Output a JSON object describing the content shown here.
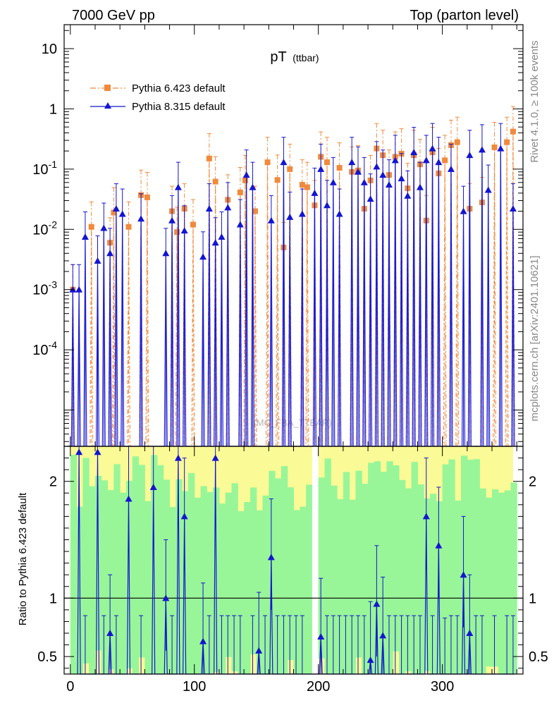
{
  "header": {
    "left_title": "7000 GeV pp",
    "right_title": "Top (parton level)"
  },
  "side_labels": {
    "rivet": "Rivet 4.1.0, ≥ 100k events",
    "mcplots": "mcplots.cern.ch [arXiv:2401.10621]"
  },
  "watermark": "(MC_FBA_TTBAR)",
  "colors": {
    "pythia6": "#f08a3c",
    "pythia8": "#1414d2",
    "band_inner": "#98f698",
    "band_outer": "#fafa96"
  },
  "chart_data": [
    {
      "type": "line",
      "title": "pT",
      "title_suffix": "(ttbar)",
      "yscale": "log",
      "ylim": [
        2.5e-06,
        25
      ],
      "xlim": [
        -5,
        365
      ],
      "ytick_labels": [
        "10^{-4}",
        "10^{-3}",
        "10^{-2}",
        "10^{-1}",
        "1",
        "10"
      ],
      "ytick_values": [
        0.0001,
        0.001,
        0.01,
        0.1,
        1,
        10
      ],
      "legend": [
        "Pythia 6.423 default",
        "Pythia 8.315 default"
      ],
      "legend_position": "top-left",
      "series": [
        {
          "name": "Pythia 6.423 default",
          "marker": "square",
          "line": "dash-dot",
          "x": [
            2,
            17,
            32,
            35,
            47,
            57,
            62,
            82,
            86,
            92,
            99,
            112,
            117,
            127,
            137,
            141,
            149,
            159,
            167,
            172,
            177,
            187,
            191,
            197,
            202,
            207,
            217,
            227,
            232,
            237,
            242,
            247,
            252,
            257,
            262,
            267,
            272,
            277,
            282,
            287,
            292,
            297,
            302,
            307,
            312,
            322,
            332,
            342,
            352,
            357
          ],
          "y": [
            0.001,
            0.011,
            0.006,
            0.019,
            0.011,
            0.037,
            0.034,
            0.02,
            0.009,
            0.022,
            0.012,
            0.15,
            0.062,
            0.031,
            0.041,
            0.065,
            0.02,
            0.13,
            0.066,
            0.005,
            0.1,
            0.055,
            0.05,
            0.025,
            0.16,
            0.13,
            0.105,
            0.09,
            0.095,
            0.022,
            0.065,
            0.22,
            0.17,
            0.08,
            0.16,
            0.18,
            0.048,
            0.17,
            0.12,
            0.014,
            0.19,
            0.085,
            0.14,
            0.25,
            0.28,
            0.022,
            0.028,
            0.23,
            0.28,
            0.42
          ]
        },
        {
          "name": "Pythia 8.315 default",
          "marker": "triangle",
          "line": "solid",
          "x": [
            2,
            7,
            12,
            22,
            27,
            32,
            37,
            42,
            57,
            77,
            82,
            87,
            92,
            107,
            112,
            117,
            122,
            127,
            137,
            142,
            147,
            162,
            172,
            177,
            187,
            197,
            202,
            207,
            212,
            217,
            227,
            232,
            237,
            242,
            247,
            252,
            257,
            262,
            267,
            272,
            277,
            282,
            287,
            292,
            297,
            307,
            317,
            322,
            332,
            337,
            347,
            357
          ],
          "y": [
            0.001,
            0.001,
            0.0075,
            0.003,
            0.0105,
            0.004,
            0.022,
            0.018,
            0.015,
            0.004,
            0.014,
            0.05,
            0.0095,
            0.0035,
            0.022,
            0.006,
            0.0075,
            0.023,
            0.012,
            0.08,
            0.05,
            0.014,
            0.13,
            0.016,
            0.018,
            0.04,
            0.1,
            0.025,
            0.06,
            0.018,
            0.13,
            0.09,
            0.06,
            0.032,
            0.11,
            0.08,
            0.055,
            0.14,
            0.07,
            0.036,
            0.19,
            0.05,
            0.14,
            0.22,
            0.13,
            0.1,
            0.02,
            0.17,
            0.21,
            0.045,
            0.22,
            0.022
          ]
        }
      ]
    },
    {
      "type": "line",
      "ylabel": "Ratio to Pythia 6.423 default",
      "ylim": [
        0.35,
        2.3
      ],
      "yticks": [
        0.5,
        1,
        2
      ],
      "ytick_labels": [
        "0.5",
        "1",
        "2"
      ],
      "xlim": [
        -5,
        365
      ],
      "xticks": [
        0,
        100,
        200,
        300
      ],
      "xtick_labels": [
        "0",
        "100",
        "200",
        "300"
      ],
      "reference_line": 1,
      "series": [
        {
          "name": "Pythia 8.315 default / Pythia 6.423 default",
          "x": [
            7,
            12,
            22,
            27,
            32,
            37,
            47,
            57,
            67,
            77,
            82,
            87,
            92,
            107,
            112,
            117,
            122,
            127,
            132,
            137,
            147,
            152,
            157,
            162,
            167,
            172,
            177,
            182,
            187,
            202,
            207,
            212,
            217,
            222,
            227,
            232,
            237,
            242,
            247,
            252,
            257,
            262,
            267,
            272,
            277,
            282,
            287,
            292,
            297,
            302,
            307,
            312,
            317,
            322,
            327,
            332,
            342,
            352,
            357
          ],
          "y": [
            2.25,
            0.35,
            2.25,
            0.35,
            0.7,
            0.35,
            1.85,
            0.35,
            1.95,
            1.0,
            0.35,
            2.2,
            1.7,
            0.63,
            0.35,
            2.2,
            0.35,
            0.35,
            0.35,
            0.35,
            0.35,
            0.55,
            0.35,
            1.35,
            0.35,
            0.35,
            0.35,
            0.35,
            0.35,
            0.67,
            0.35,
            0.35,
            0.35,
            0.35,
            0.35,
            0.35,
            0.35,
            0.47,
            0.95,
            0.68,
            0.35,
            0.35,
            0.35,
            0.35,
            0.35,
            0.35,
            1.7,
            0.35,
            1.45,
            0.33,
            0.35,
            0.35,
            1.2,
            0.7,
            0.35,
            0.35,
            0.35,
            0.35,
            0.35
          ]
        }
      ]
    }
  ]
}
